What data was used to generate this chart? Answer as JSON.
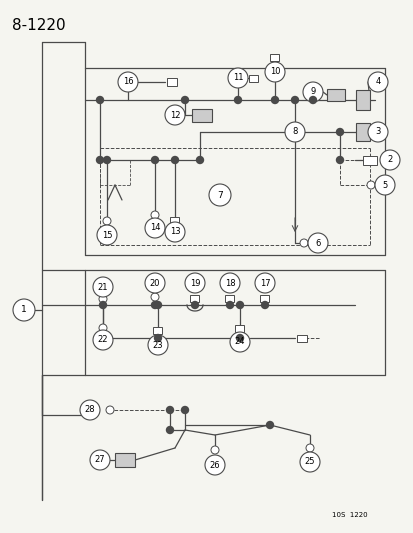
{
  "title": "8-1220",
  "footer": "10S  1220",
  "bg_color": "#f5f5f0",
  "line_color": "#4a4a4a",
  "title_fontsize": 11,
  "figsize": [
    4.14,
    5.33
  ],
  "dpi": 100
}
